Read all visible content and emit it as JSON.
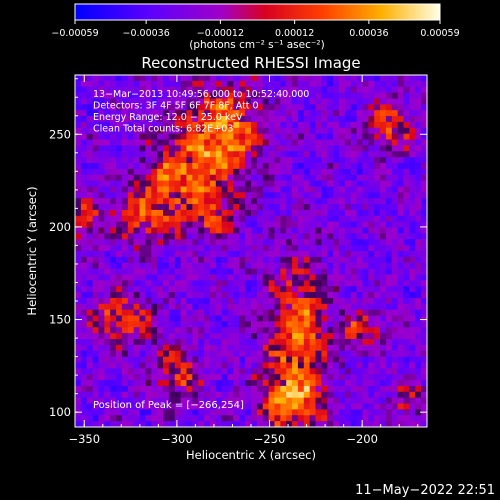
{
  "chart_data": {
    "type": "heatmap",
    "title": "Reconstructed RHESSI Image",
    "xlabel": "Heliocentric X (arcsec)",
    "ylabel": "Heliocentric Y (arcsec)",
    "xlim": [
      -355,
      -165
    ],
    "ylim": [
      92,
      282
    ],
    "x_ticks": [
      -350,
      -300,
      -250,
      -200
    ],
    "y_ticks": [
      100,
      150,
      200,
      250
    ],
    "x_tick_labels": [
      "−350",
      "−300",
      "−250",
      "−200"
    ],
    "y_tick_labels": [
      "100",
      "150",
      "200",
      "250"
    ],
    "colorbar": {
      "ticks": [
        -0.00059,
        -0.00036,
        -0.00012,
        0.00012,
        0.00036,
        0.00059
      ],
      "tick_labels": [
        "−0.00059",
        "−0.00036",
        "−0.00012",
        "0.00012",
        "0.00036",
        "0.00059"
      ],
      "units_label": "(photons cm⁻² s⁻¹ asec⁻²)",
      "range": [
        -0.00059,
        0.00059
      ]
    },
    "info_lines": [
      "13−Mar−2013 10:49:56.000 to 10:52:40.000",
      "Detectors: 3F 4F 5F 6F 7F 8F, Att 0",
      "Energy Range: 12.0 − 25.0 keV",
      "Clean    Total counts: 6.82E+03"
    ],
    "peak_label": "Position of Peak = [−266,254]",
    "peak": [
      -266,
      254
    ],
    "bright_sources": [
      {
        "x": -275,
        "y": 250,
        "sx": 14,
        "sy": 18,
        "amp": 0.00055
      },
      {
        "x": -300,
        "y": 225,
        "sx": 14,
        "sy": 16,
        "amp": 0.00042
      },
      {
        "x": -320,
        "y": 205,
        "sx": 10,
        "sy": 10,
        "amp": 0.00038
      },
      {
        "x": -350,
        "y": 205,
        "sx": 8,
        "sy": 8,
        "amp": 0.00034
      },
      {
        "x": -235,
        "y": 140,
        "sx": 12,
        "sy": 30,
        "amp": 0.00048
      },
      {
        "x": -240,
        "y": 105,
        "sx": 12,
        "sy": 10,
        "amp": 0.0004
      },
      {
        "x": -330,
        "y": 150,
        "sx": 12,
        "sy": 10,
        "amp": 0.00038
      },
      {
        "x": -300,
        "y": 120,
        "sx": 10,
        "sy": 10,
        "amp": 0.00035
      },
      {
        "x": -280,
        "y": 205,
        "sx": 10,
        "sy": 8,
        "amp": 0.0003
      },
      {
        "x": -185,
        "y": 255,
        "sx": 9,
        "sy": 10,
        "amp": 0.00038
      },
      {
        "x": -200,
        "y": 145,
        "sx": 10,
        "sy": 8,
        "amp": 0.0003
      },
      {
        "x": -175,
        "y": 105,
        "sx": 8,
        "sy": 8,
        "amp": 0.00028
      }
    ],
    "grid": false
  },
  "footer": {
    "timestamp": "11−May−2022 22:51"
  }
}
